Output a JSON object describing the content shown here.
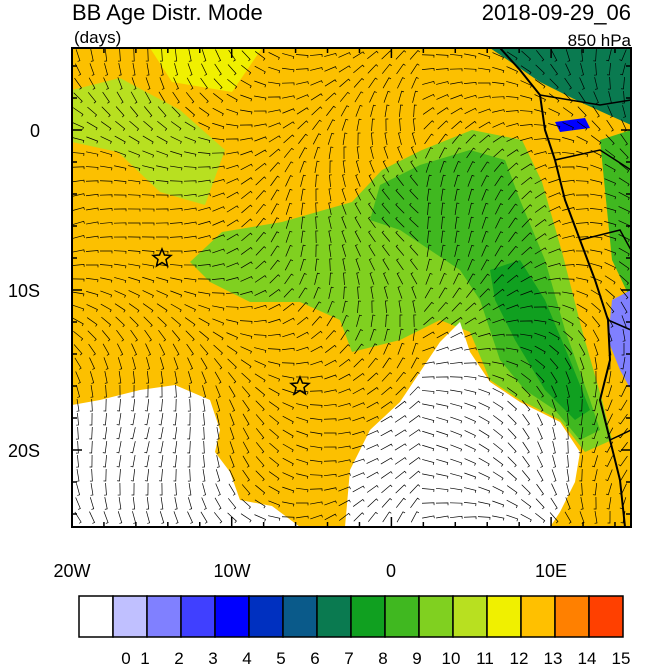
{
  "header": {
    "title": "BB Age Distr. Mode",
    "units": "(days)",
    "time": "2018-09-29_06",
    "level": "850 hPa"
  },
  "axes": {
    "x_labels": [
      "20W",
      "10W",
      "0",
      "10E"
    ],
    "y_labels": [
      "0",
      "10S",
      "20S"
    ]
  },
  "colorbar": {
    "labels": [
      0,
      1,
      2,
      3,
      4,
      5,
      6,
      7,
      8,
      9,
      10,
      11,
      12,
      13,
      14,
      15
    ],
    "colors": [
      "#ffffff",
      "#c0c0ff",
      "#8080ff",
      "#4040ff",
      "#0000ff",
      "#0030c0",
      "#0a5a8a",
      "#0a7a50",
      "#10a020",
      "#40b820",
      "#80d020",
      "#b8e020",
      "#f0f000",
      "#ffc000",
      "#ff8000",
      "#ff4000"
    ]
  }
}
